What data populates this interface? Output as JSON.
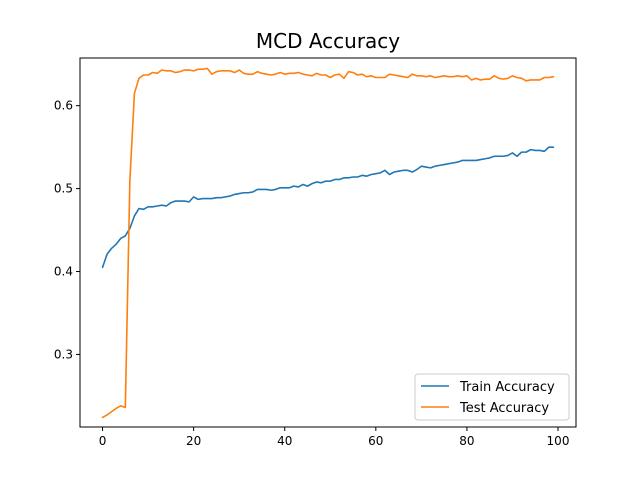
{
  "chart_data": {
    "type": "line",
    "title": "MCD Accuracy",
    "xlabel": "",
    "ylabel": "",
    "xlim": [
      -4.95,
      103.95
    ],
    "ylim": [
      0.2125,
      0.6575
    ],
    "xticks": [
      0,
      20,
      40,
      60,
      80,
      100
    ],
    "yticks": [
      0.3,
      0.4,
      0.5,
      0.6
    ],
    "xtick_labels": [
      "0",
      "20",
      "40",
      "60",
      "80",
      "100"
    ],
    "ytick_labels": [
      "0.3",
      "0.4",
      "0.5",
      "0.6"
    ],
    "grid": false,
    "legend_position": "lower-right",
    "x": [
      0,
      1,
      2,
      3,
      4,
      5,
      6,
      7,
      8,
      9,
      10,
      11,
      12,
      13,
      14,
      15,
      16,
      17,
      18,
      19,
      20,
      21,
      22,
      23,
      24,
      25,
      26,
      27,
      28,
      29,
      30,
      31,
      32,
      33,
      34,
      35,
      36,
      37,
      38,
      39,
      40,
      41,
      42,
      43,
      44,
      45,
      46,
      47,
      48,
      49,
      50,
      51,
      52,
      53,
      54,
      55,
      56,
      57,
      58,
      59,
      60,
      61,
      62,
      63,
      64,
      65,
      66,
      67,
      68,
      69,
      70,
      71,
      72,
      73,
      74,
      75,
      76,
      77,
      78,
      79,
      80,
      81,
      82,
      83,
      84,
      85,
      86,
      87,
      88,
      89,
      90,
      91,
      92,
      93,
      94,
      95,
      96,
      97,
      98,
      99
    ],
    "series": [
      {
        "name": "Train Accuracy",
        "color": "#1f77b4",
        "values": [
          0.405,
          0.421,
          0.428,
          0.433,
          0.44,
          0.443,
          0.452,
          0.467,
          0.476,
          0.475,
          0.478,
          0.478,
          0.479,
          0.48,
          0.479,
          0.483,
          0.485,
          0.485,
          0.485,
          0.484,
          0.49,
          0.487,
          0.488,
          0.488,
          0.488,
          0.489,
          0.489,
          0.49,
          0.491,
          0.493,
          0.494,
          0.495,
          0.495,
          0.496,
          0.499,
          0.499,
          0.499,
          0.498,
          0.499,
          0.501,
          0.501,
          0.501,
          0.503,
          0.502,
          0.505,
          0.503,
          0.506,
          0.508,
          0.507,
          0.509,
          0.509,
          0.511,
          0.511,
          0.513,
          0.513,
          0.514,
          0.514,
          0.516,
          0.515,
          0.517,
          0.518,
          0.519,
          0.522,
          0.517,
          0.52,
          0.521,
          0.522,
          0.522,
          0.52,
          0.523,
          0.527,
          0.526,
          0.525,
          0.527,
          0.528,
          0.529,
          0.53,
          0.531,
          0.532,
          0.534,
          0.534,
          0.534,
          0.534,
          0.535,
          0.536,
          0.537,
          0.539,
          0.539,
          0.539,
          0.54,
          0.543,
          0.539,
          0.544,
          0.544,
          0.547,
          0.546,
          0.546,
          0.545,
          0.55,
          0.55
        ]
      },
      {
        "name": "Test Accuracy",
        "color": "#ff7f0e",
        "values": [
          0.224,
          0.227,
          0.231,
          0.235,
          0.238,
          0.236,
          0.51,
          0.615,
          0.633,
          0.637,
          0.637,
          0.64,
          0.639,
          0.643,
          0.642,
          0.642,
          0.64,
          0.641,
          0.643,
          0.643,
          0.642,
          0.644,
          0.644,
          0.645,
          0.638,
          0.641,
          0.642,
          0.642,
          0.642,
          0.64,
          0.643,
          0.639,
          0.638,
          0.638,
          0.641,
          0.639,
          0.638,
          0.637,
          0.638,
          0.64,
          0.638,
          0.639,
          0.639,
          0.64,
          0.638,
          0.637,
          0.636,
          0.639,
          0.637,
          0.637,
          0.634,
          0.637,
          0.638,
          0.633,
          0.641,
          0.64,
          0.637,
          0.638,
          0.635,
          0.636,
          0.634,
          0.634,
          0.634,
          0.638,
          0.637,
          0.636,
          0.635,
          0.634,
          0.638,
          0.636,
          0.636,
          0.635,
          0.636,
          0.634,
          0.635,
          0.636,
          0.635,
          0.635,
          0.636,
          0.635,
          0.636,
          0.631,
          0.633,
          0.631,
          0.632,
          0.632,
          0.636,
          0.633,
          0.632,
          0.633,
          0.636,
          0.634,
          0.633,
          0.63,
          0.631,
          0.631,
          0.631,
          0.634,
          0.634,
          0.635
        ]
      }
    ]
  }
}
